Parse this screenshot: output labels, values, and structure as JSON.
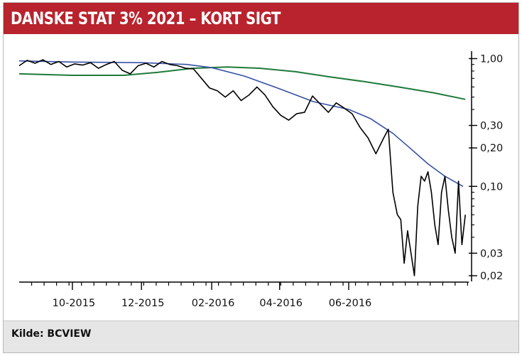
{
  "title": "DANSKE STAT 3% 2021 – KORT SIGT",
  "source": "Kilde: BCVIEW",
  "colors": {
    "title_bg": "#b8232d",
    "price": "#000000",
    "ma_short": "#3651a6",
    "ma_long": "#1f7a3a",
    "footer_bg": "#e6e6e6"
  },
  "chart_data": {
    "type": "line",
    "title": "DANSKE STAT 3% 2021 – KORT SIGT",
    "xlabel": "",
    "ylabel": "",
    "y_scale": "log",
    "ylim": [
      0.019,
      1.3
    ],
    "x_range": [
      "2015-08-15",
      "2016-09-15"
    ],
    "x_ticks": [
      {
        "label": "10-2015",
        "date": "2015-10-01"
      },
      {
        "label": "12-2015",
        "date": "2015-12-01"
      },
      {
        "label": "02-2016",
        "date": "2016-02-01"
      },
      {
        "label": "04-2016",
        "date": "2016-04-01"
      },
      {
        "label": "06-2016",
        "date": "2016-06-01"
      }
    ],
    "y_ticks": [
      {
        "label": "1,00",
        "value": 1.0
      },
      {
        "label": "0,30",
        "value": 0.3
      },
      {
        "label": "0,20",
        "value": 0.2
      },
      {
        "label": "0,10",
        "value": 0.1
      },
      {
        "label": "0,03",
        "value": 0.03
      },
      {
        "label": "0,02",
        "value": 0.02
      }
    ],
    "series": [
      {
        "key": "price",
        "x": [
          "2015-08-15",
          "2015-08-22",
          "2015-08-29",
          "2015-09-05",
          "2015-09-12",
          "2015-09-19",
          "2015-09-26",
          "2015-10-03",
          "2015-10-10",
          "2015-10-17",
          "2015-10-24",
          "2015-10-31",
          "2015-11-07",
          "2015-11-14",
          "2015-11-21",
          "2015-11-28",
          "2015-12-05",
          "2015-12-12",
          "2015-12-19",
          "2015-12-26",
          "2016-01-02",
          "2016-01-09",
          "2016-01-16",
          "2016-01-23",
          "2016-01-30",
          "2016-02-06",
          "2016-02-13",
          "2016-02-20",
          "2016-02-27",
          "2016-03-05",
          "2016-03-12",
          "2016-03-19",
          "2016-03-26",
          "2016-04-02",
          "2016-04-09",
          "2016-04-16",
          "2016-04-23",
          "2016-04-30",
          "2016-05-07",
          "2016-05-14",
          "2016-05-21",
          "2016-05-28",
          "2016-06-04",
          "2016-06-11",
          "2016-06-18",
          "2016-06-25",
          "2016-07-02",
          "2016-07-06",
          "2016-07-10",
          "2016-07-14",
          "2016-07-17",
          "2016-07-20",
          "2016-07-23",
          "2016-07-26",
          "2016-07-29",
          "2016-08-01",
          "2016-08-04",
          "2016-08-07",
          "2016-08-10",
          "2016-08-13",
          "2016-08-16",
          "2016-08-19",
          "2016-08-22",
          "2016-08-25",
          "2016-08-28",
          "2016-08-31",
          "2016-09-03",
          "2016-09-06",
          "2016-09-09",
          "2016-09-12"
        ],
        "values": [
          0.88,
          0.97,
          0.92,
          0.98,
          0.9,
          0.95,
          0.86,
          0.91,
          0.89,
          0.93,
          0.84,
          0.9,
          0.95,
          0.81,
          0.76,
          0.88,
          0.92,
          0.86,
          0.95,
          0.9,
          0.88,
          0.84,
          0.83,
          0.7,
          0.59,
          0.56,
          0.5,
          0.56,
          0.47,
          0.52,
          0.6,
          0.52,
          0.42,
          0.36,
          0.33,
          0.37,
          0.38,
          0.51,
          0.44,
          0.38,
          0.45,
          0.41,
          0.37,
          0.29,
          0.24,
          0.18,
          0.24,
          0.28,
          0.09,
          0.06,
          0.055,
          0.025,
          0.045,
          0.03,
          0.02,
          0.07,
          0.12,
          0.11,
          0.13,
          0.09,
          0.05,
          0.035,
          0.09,
          0.12,
          0.065,
          0.04,
          0.03,
          0.11,
          0.035,
          0.06
        ]
      },
      {
        "key": "ma_short",
        "x": [
          "2015-08-15",
          "2015-10-01",
          "2015-12-01",
          "2016-01-10",
          "2016-02-01",
          "2016-03-01",
          "2016-04-01",
          "2016-05-01",
          "2016-06-01",
          "2016-06-20",
          "2016-07-10",
          "2016-07-25",
          "2016-08-10",
          "2016-08-25",
          "2016-09-10"
        ],
        "values": [
          0.96,
          0.94,
          0.93,
          0.9,
          0.85,
          0.73,
          0.58,
          0.46,
          0.4,
          0.34,
          0.26,
          0.2,
          0.15,
          0.12,
          0.1
        ]
      },
      {
        "key": "ma_long",
        "x": [
          "2015-08-15",
          "2015-10-01",
          "2015-11-15",
          "2015-12-15",
          "2016-01-15",
          "2016-02-15",
          "2016-03-15",
          "2016-04-15",
          "2016-05-15",
          "2016-06-15",
          "2016-07-15",
          "2016-08-15",
          "2016-09-12"
        ],
        "values": [
          0.76,
          0.74,
          0.74,
          0.78,
          0.84,
          0.86,
          0.84,
          0.79,
          0.72,
          0.66,
          0.6,
          0.54,
          0.48
        ]
      }
    ]
  }
}
